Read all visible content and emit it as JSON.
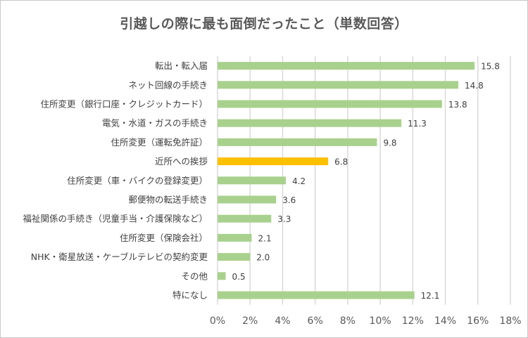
{
  "chart_data": {
    "type": "bar",
    "orientation": "horizontal",
    "title": "引越しの際に最も面倒だったこと（単数回答）",
    "xlabel": "",
    "ylabel": "",
    "xlim": [
      0,
      18
    ],
    "x_ticks": [
      "0%",
      "2%",
      "4%",
      "6%",
      "8%",
      "10%",
      "12%",
      "14%",
      "16%",
      "18%"
    ],
    "x_tick_values": [
      0,
      2,
      4,
      6,
      8,
      10,
      12,
      14,
      16,
      18
    ],
    "grid": "vertical",
    "legend": "none",
    "colors": {
      "default": "#a9d18e",
      "highlight": "#ffc000",
      "grid": "#d9d9d9",
      "text": "#404040",
      "title": "#595959"
    },
    "categories": [
      "転出・転入届",
      "ネット回線の手続き",
      "住所変更（銀行口座・クレジットカード）",
      "電気・水道・ガスの手続き",
      "住所変更（運転免許証）",
      "近所への挨拶",
      "住所変更（車・バイクの登録変更）",
      "郵便物の転送手続き",
      "福祉関係の手続き（児童手当・介護保険など）",
      "住所変更（保険会社）",
      "NHK・衛星放送・ケーブルテレビの契約変更",
      "その他",
      "特になし"
    ],
    "values": [
      15.8,
      14.8,
      13.8,
      11.3,
      9.8,
      6.8,
      4.2,
      3.6,
      3.3,
      2.1,
      2.0,
      0.5,
      12.1
    ],
    "value_labels": [
      "15.8",
      "14.8",
      "13.8",
      "11.3",
      "9.8",
      "6.8",
      "4.2",
      "3.6",
      "3.3",
      "2.1",
      "2.0",
      "0.5",
      "12.1"
    ],
    "highlight_index": 5
  }
}
